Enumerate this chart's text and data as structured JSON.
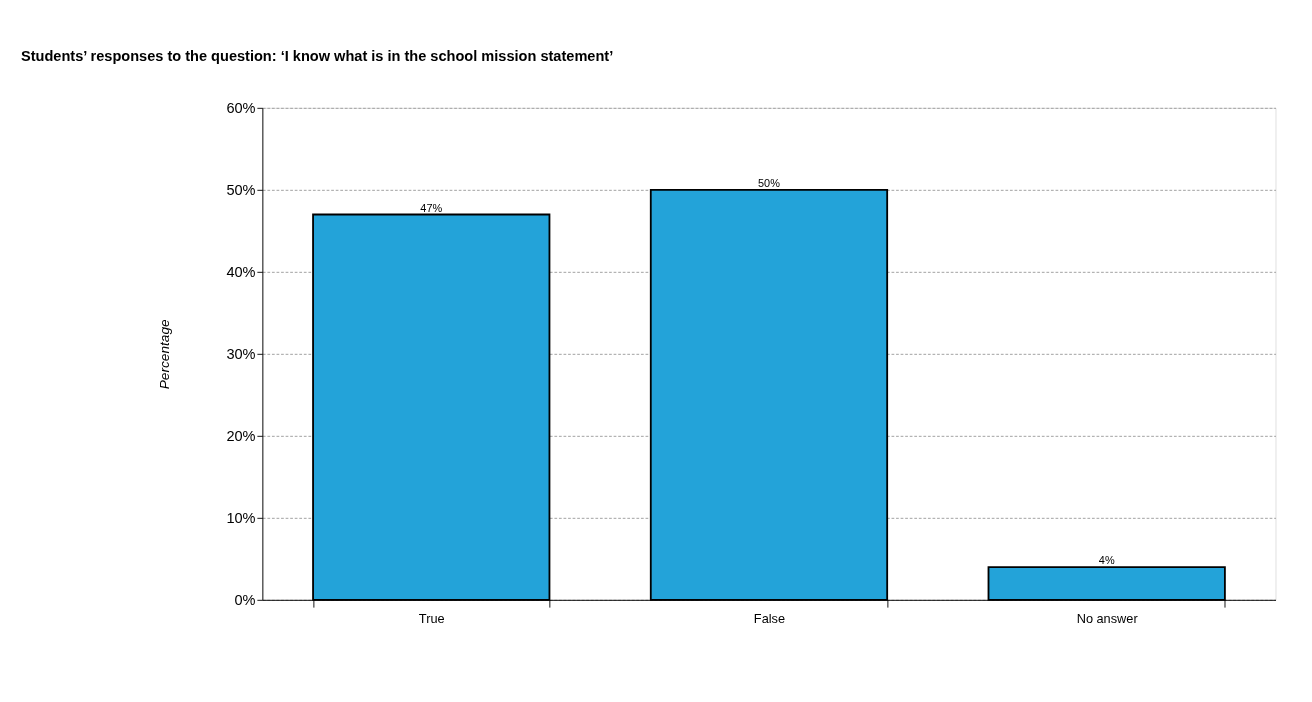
{
  "chart_data": {
    "type": "bar",
    "title": "Students’ responses to the question: ‘I know what is in the school mission statement’",
    "ylabel": "Percentage",
    "categories": [
      "True",
      "False",
      "No answer"
    ],
    "values": [
      47,
      50,
      4
    ],
    "value_labels": [
      "47%",
      "50%",
      "4%"
    ],
    "color": "#23a3d9",
    "ylim": [
      0,
      60
    ],
    "yticks": [
      {
        "value": 0,
        "label": "0%"
      },
      {
        "value": 10,
        "label": "10%"
      },
      {
        "value": 20,
        "label": "20%"
      },
      {
        "value": 30,
        "label": "30%"
      },
      {
        "value": 40,
        "label": "40%"
      },
      {
        "value": 50,
        "label": "50%"
      },
      {
        "value": 60,
        "label": "60%"
      }
    ],
    "grid": "y"
  }
}
